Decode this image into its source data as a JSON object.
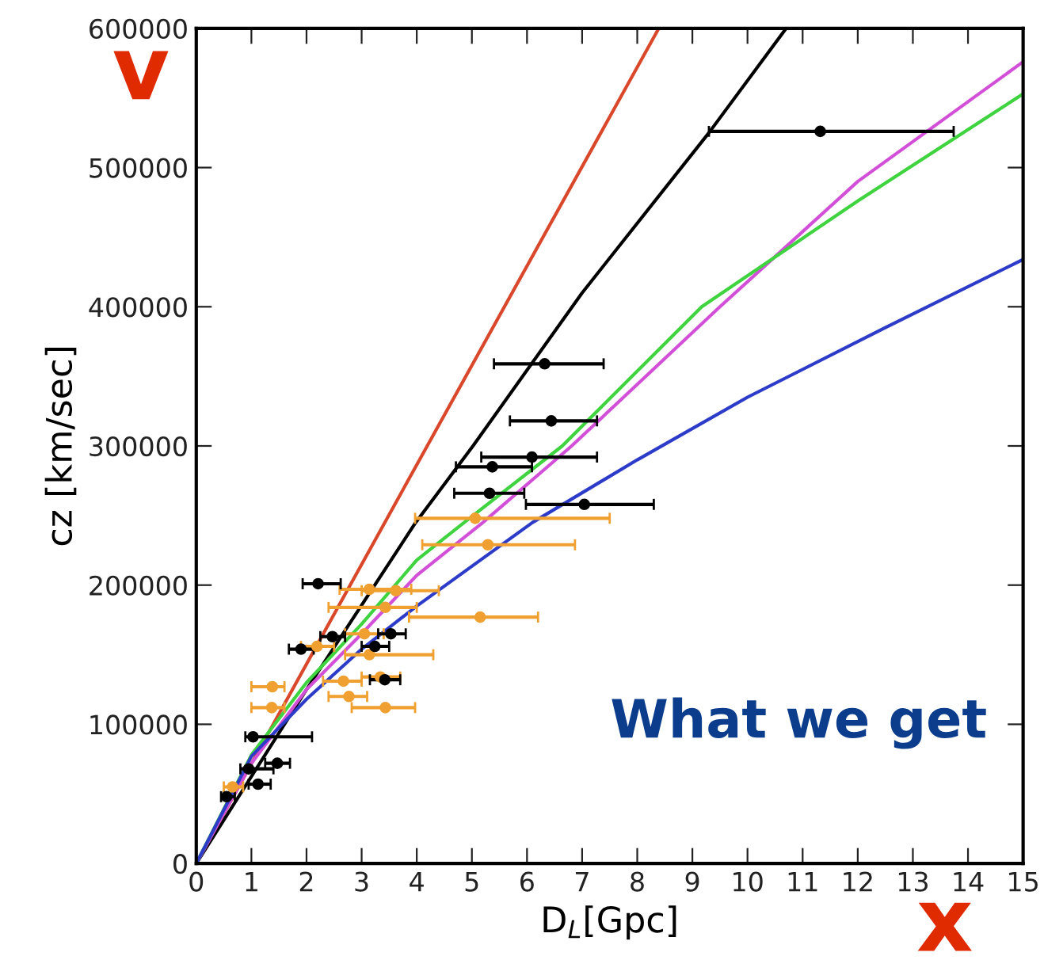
{
  "chart_data": {
    "type": "line",
    "xlabel": "D$_{L}$[Gpc]",
    "ylabel": "cz [km/sec]",
    "xlim": [
      0,
      15
    ],
    "ylim": [
      0,
      600000
    ],
    "xticks": [
      0,
      1,
      2,
      3,
      4,
      5,
      6,
      7,
      8,
      9,
      10,
      11,
      12,
      13,
      14,
      15
    ],
    "yticks": [
      0,
      100000,
      200000,
      300000,
      400000,
      500000,
      600000
    ],
    "annotations": [
      "v",
      "x",
      "What we get"
    ],
    "series": [
      {
        "color": "#d9482b",
        "x": [
          0,
          3.42,
          8.39
        ],
        "values": [
          0,
          245000,
          600000
        ]
      },
      {
        "color": "#000000",
        "x": [
          0,
          2,
          3.98,
          5.02,
          7,
          9.3,
          10.7
        ],
        "values": [
          0,
          125000,
          245000,
          300000,
          410000,
          525000,
          600000
        ]
      },
      {
        "color": "#d24fd8",
        "x": [
          0,
          1,
          2,
          3,
          4,
          5.2,
          6.81,
          9.5,
          12,
          15
        ],
        "values": [
          0,
          72000,
          125000,
          165000,
          207000,
          245000,
          300000,
          400000,
          490000,
          576000
        ]
      },
      {
        "color": "#3fd43f",
        "x": [
          0,
          1,
          2,
          3,
          4,
          4.86,
          6.64,
          9.17,
          12,
          15
        ],
        "values": [
          0,
          78000,
          130000,
          172000,
          218000,
          245000,
          300000,
          400000,
          476000,
          553000
        ]
      },
      {
        "color": "#2d3cc8",
        "x": [
          0,
          1,
          2,
          3,
          4,
          6.1,
          8,
          10,
          12.5,
          15
        ],
        "values": [
          0,
          77000,
          118000,
          154000,
          185000,
          245000,
          290000,
          335000,
          385000,
          434000
        ]
      },
      {
        "type": "scatter",
        "color": "#f0a030",
        "marker": "circle",
        "x": [
          5.06,
          5.29,
          5.15,
          3.43,
          1.37,
          1.38,
          3.14,
          3.43,
          3.14,
          3.62,
          2.67,
          2.19,
          3.05,
          3.34,
          0.66,
          2.77
        ],
        "values": [
          248000,
          229000,
          177000,
          112000,
          112000,
          127000,
          150000,
          184000,
          197000,
          196000,
          131000,
          156000,
          165000,
          134000,
          55000,
          120000
        ],
        "xerrors": [
          [
            3.97,
            7.5
          ],
          [
            4.1,
            6.87
          ],
          [
            3.86,
            6.2
          ],
          [
            2.82,
            3.97
          ],
          [
            1.0,
            1.6
          ],
          [
            1.0,
            1.6
          ],
          [
            2.7,
            4.3
          ],
          [
            2.4,
            4.0
          ],
          [
            2.6,
            3.9
          ],
          [
            3.0,
            4.4
          ],
          [
            2.3,
            3.0
          ],
          [
            1.9,
            2.5
          ],
          [
            2.7,
            3.4
          ],
          [
            3.0,
            3.7
          ],
          [
            0.5,
            0.85
          ],
          [
            2.4,
            3.1
          ]
        ]
      },
      {
        "type": "scatter",
        "color": "#000000",
        "marker": "circle",
        "x": [
          11.32,
          6.32,
          6.44,
          5.37,
          6.09,
          5.32,
          7.04,
          2.21,
          1.9,
          1.03,
          0.95,
          0.55,
          1.47,
          1.12,
          2.47,
          3.24,
          3.42,
          3.53
        ],
        "values": [
          526000,
          359000,
          318000,
          285000,
          292000,
          266000,
          258000,
          201000,
          154000,
          91000,
          68000,
          48000,
          72000,
          57000,
          163000,
          156000,
          132000,
          165000
        ],
        "xerrors": [
          [
            9.3,
            13.74
          ],
          [
            5.4,
            7.39
          ],
          [
            5.69,
            7.27
          ],
          [
            4.71,
            6.09
          ],
          [
            5.17,
            7.27
          ],
          [
            4.68,
            5.95
          ],
          [
            5.98,
            8.3
          ],
          [
            1.93,
            2.62
          ],
          [
            1.68,
            2.13
          ],
          [
            0.89,
            2.1
          ],
          [
            0.8,
            1.4
          ],
          [
            0.45,
            0.7
          ],
          [
            1.25,
            1.7
          ],
          [
            0.95,
            1.35
          ],
          [
            2.25,
            2.7
          ],
          [
            3.0,
            3.5
          ],
          [
            3.15,
            3.7
          ],
          [
            3.3,
            3.8
          ]
        ]
      }
    ]
  }
}
